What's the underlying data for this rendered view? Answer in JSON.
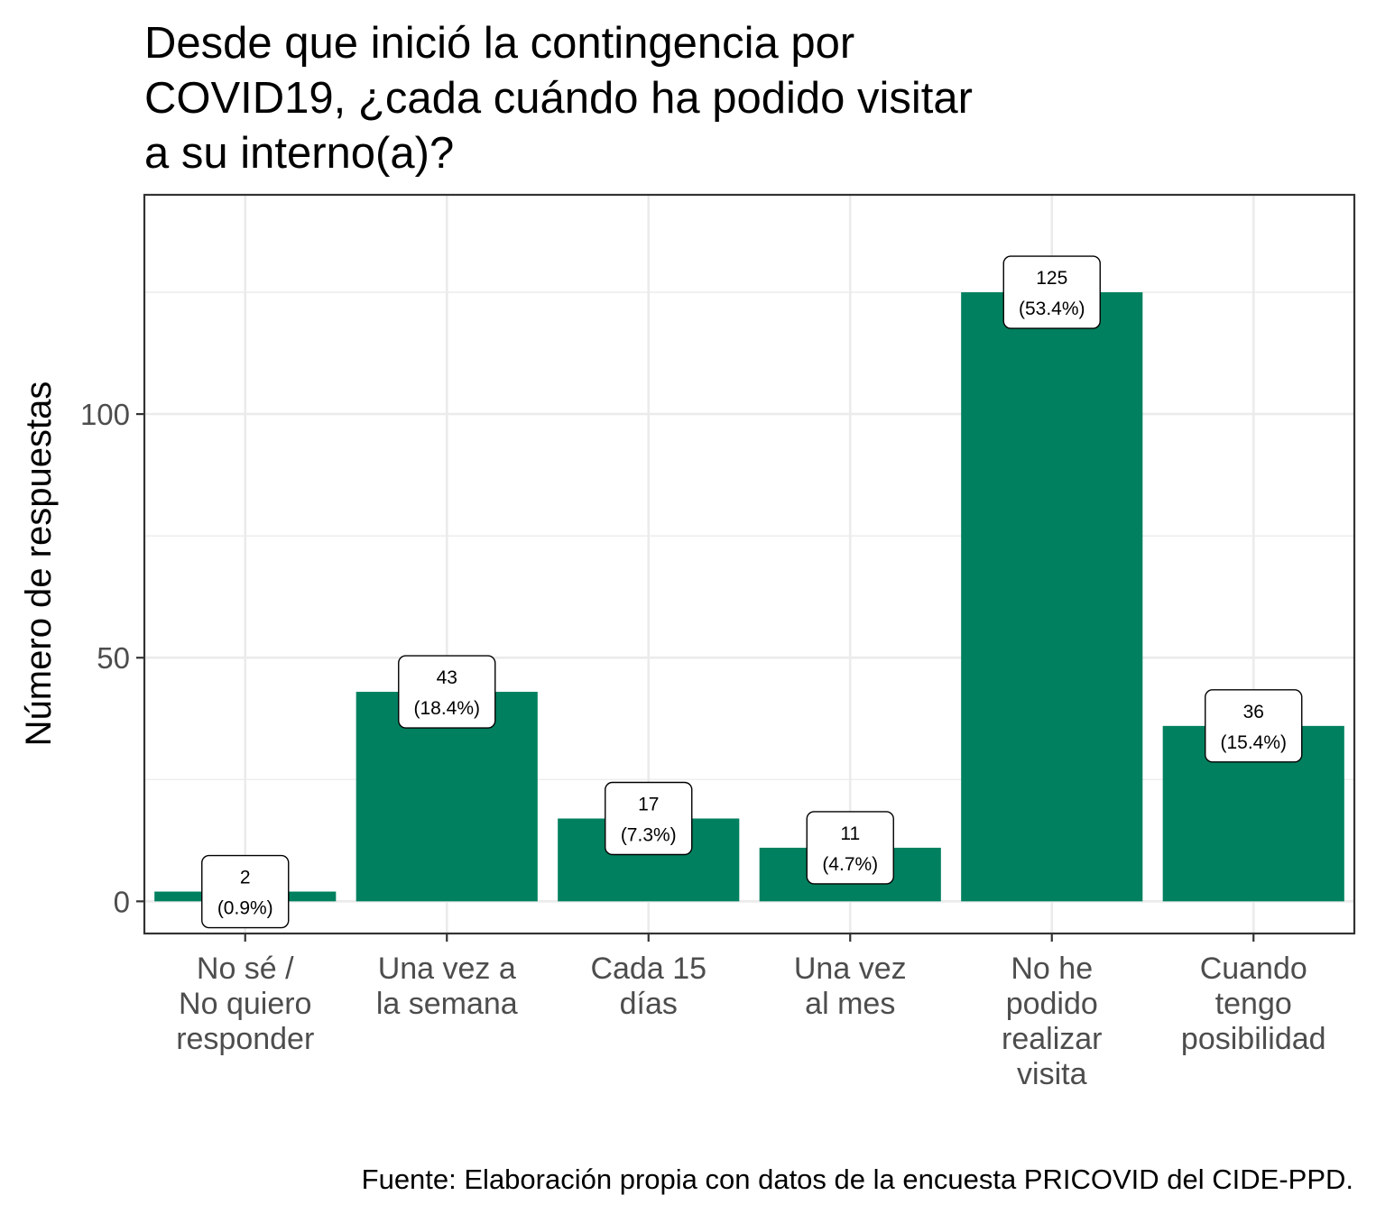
{
  "chart_data": {
    "type": "bar",
    "title": "Desde que inició la contingencia por COVID19, ¿cada cuándo ha podido visitar a su interno(a)?",
    "title_lines": [
      "Desde que inició la contingencia por",
      "COVID19, ¿cada cuándo ha podido visitar",
      "a su interno(a)?"
    ],
    "ylabel": "Número de respuestas",
    "xlabel": "",
    "categories": [
      "No sé / No quiero responder",
      "Una vez a la semana",
      "Cada 15 días",
      "Una vez al mes",
      "No he podido realizar visita",
      "Cuando tengo posibilidad"
    ],
    "category_lines": [
      [
        "No sé /",
        "No quiero",
        "responder"
      ],
      [
        "Una vez a",
        "la semana"
      ],
      [
        "Cada 15",
        "días"
      ],
      [
        "Una vez",
        "al mes"
      ],
      [
        "No he",
        "podido",
        "realizar",
        "visita"
      ],
      [
        "Cuando",
        "tengo",
        "posibilidad"
      ]
    ],
    "values": [
      2,
      43,
      17,
      11,
      125,
      36
    ],
    "percent_labels": [
      "(0.9%)",
      "(18.4%)",
      "(7.3%)",
      "(4.7%)",
      "(53.4%)",
      "(15.4%)"
    ],
    "yticks": [
      0,
      50,
      100
    ],
    "ylim": [
      -6.6,
      145
    ],
    "grid": true,
    "bar_color": "#00805f",
    "caption": "Fuente: Elaboración propia con datos de la encuesta PRICOVID del CIDE-PPD."
  }
}
